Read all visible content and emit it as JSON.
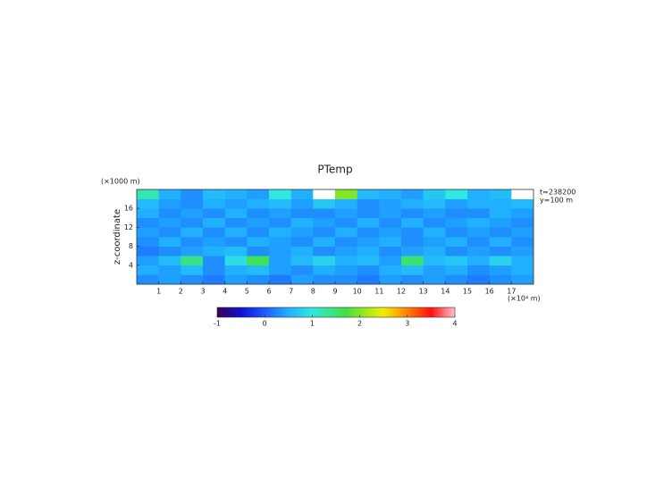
{
  "chart_data": {
    "type": "heatmap",
    "title": "PTemp",
    "y_label": "z-coordinate",
    "y_unit": "(×1000 m)",
    "x_unit": "(×10⁴ m)",
    "annotations": [
      "t=238200",
      "y=100 m"
    ],
    "x": [
      0.5,
      1.5,
      2.5,
      3.5,
      4.5,
      5.5,
      6.5,
      7.5,
      8.5,
      9.5,
      10.5,
      11.5,
      12.5,
      13.5,
      14.5,
      15.5,
      16.5,
      17.5
    ],
    "y": [
      1,
      3,
      5,
      7,
      9,
      11,
      13,
      15,
      17,
      19
    ],
    "z": [
      [
        0.3,
        0.4,
        0.3,
        0.2,
        0.4,
        0.3,
        0.2,
        0.4,
        0.3,
        0.3,
        0.2,
        0.4,
        0.3,
        0.4,
        0.3,
        0.2,
        0.3,
        0.4
      ],
      [
        0.5,
        0.4,
        0.6,
        0.3,
        0.5,
        0.6,
        0.4,
        0.3,
        0.5,
        0.4,
        0.3,
        0.5,
        0.6,
        0.4,
        0.5,
        0.3,
        0.4,
        0.5
      ],
      [
        0.4,
        0.6,
        1.4,
        0.3,
        0.9,
        1.6,
        0.4,
        0.6,
        0.8,
        0.5,
        0.6,
        0.4,
        1.5,
        0.6,
        0.7,
        0.5,
        0.8,
        0.5
      ],
      [
        0.2,
        0.3,
        0.4,
        0.5,
        0.6,
        0.3,
        0.4,
        0.5,
        0.3,
        0.4,
        0.5,
        0.3,
        0.4,
        0.5,
        0.3,
        0.4,
        0.3,
        0.4
      ],
      [
        0.3,
        0.5,
        0.3,
        0.4,
        0.3,
        0.5,
        0.4,
        0.3,
        0.5,
        0.3,
        0.4,
        0.5,
        0.3,
        0.4,
        0.5,
        0.3,
        0.5,
        0.3
      ],
      [
        0.4,
        0.3,
        0.5,
        0.3,
        0.5,
        0.3,
        0.5,
        0.4,
        0.3,
        0.5,
        0.3,
        0.4,
        0.3,
        0.5,
        0.3,
        0.4,
        0.3,
        0.4
      ],
      [
        0.3,
        0.4,
        0.3,
        0.5,
        0.3,
        0.4,
        0.3,
        0.5,
        0.4,
        0.3,
        0.5,
        0.3,
        0.5,
        0.3,
        0.4,
        0.5,
        0.4,
        0.3
      ],
      [
        0.5,
        0.3,
        0.4,
        0.3,
        0.5,
        0.3,
        0.4,
        0.3,
        0.3,
        0.4,
        0.3,
        0.4,
        0.3,
        0.4,
        0.3,
        0.3,
        0.5,
        0.4
      ],
      [
        0.6,
        0.4,
        0.3,
        0.5,
        0.4,
        0.5,
        0.6,
        0.4,
        0.7,
        0.5,
        0.3,
        0.4,
        0.5,
        0.6,
        0.4,
        0.5,
        0.5,
        0.6
      ],
      [
        1.2,
        0.5,
        0.3,
        0.6,
        0.5,
        0.4,
        1.0,
        0.5,
        4.5,
        2.0,
        0.6,
        0.5,
        0.4,
        0.7,
        1.0,
        0.5,
        0.6,
        4.5
      ]
    ],
    "xlim": [
      0,
      18
    ],
    "ylim": [
      0,
      20
    ],
    "xticks": [
      1,
      2,
      3,
      4,
      5,
      6,
      7,
      8,
      9,
      10,
      11,
      12,
      13,
      14,
      15,
      16,
      17
    ],
    "yticks": [
      4,
      8,
      12,
      16
    ],
    "clim": [
      -1,
      4
    ],
    "cticks": [
      -1,
      0,
      1,
      2,
      3,
      4
    ],
    "colormap": [
      {
        "value": -1,
        "color": "#3a0050"
      },
      {
        "value": -0.5,
        "color": "#1010d0"
      },
      {
        "value": 0,
        "color": "#1d5bff"
      },
      {
        "value": 0.5,
        "color": "#20b0ff"
      },
      {
        "value": 1,
        "color": "#30e8e0"
      },
      {
        "value": 1.7,
        "color": "#40e040"
      },
      {
        "value": 2.5,
        "color": "#f0f000"
      },
      {
        "value": 3,
        "color": "#ff8000"
      },
      {
        "value": 3.5,
        "color": "#ff1010"
      },
      {
        "value": 4,
        "color": "#ffc0d0"
      }
    ],
    "over_color": "#ffffff"
  }
}
